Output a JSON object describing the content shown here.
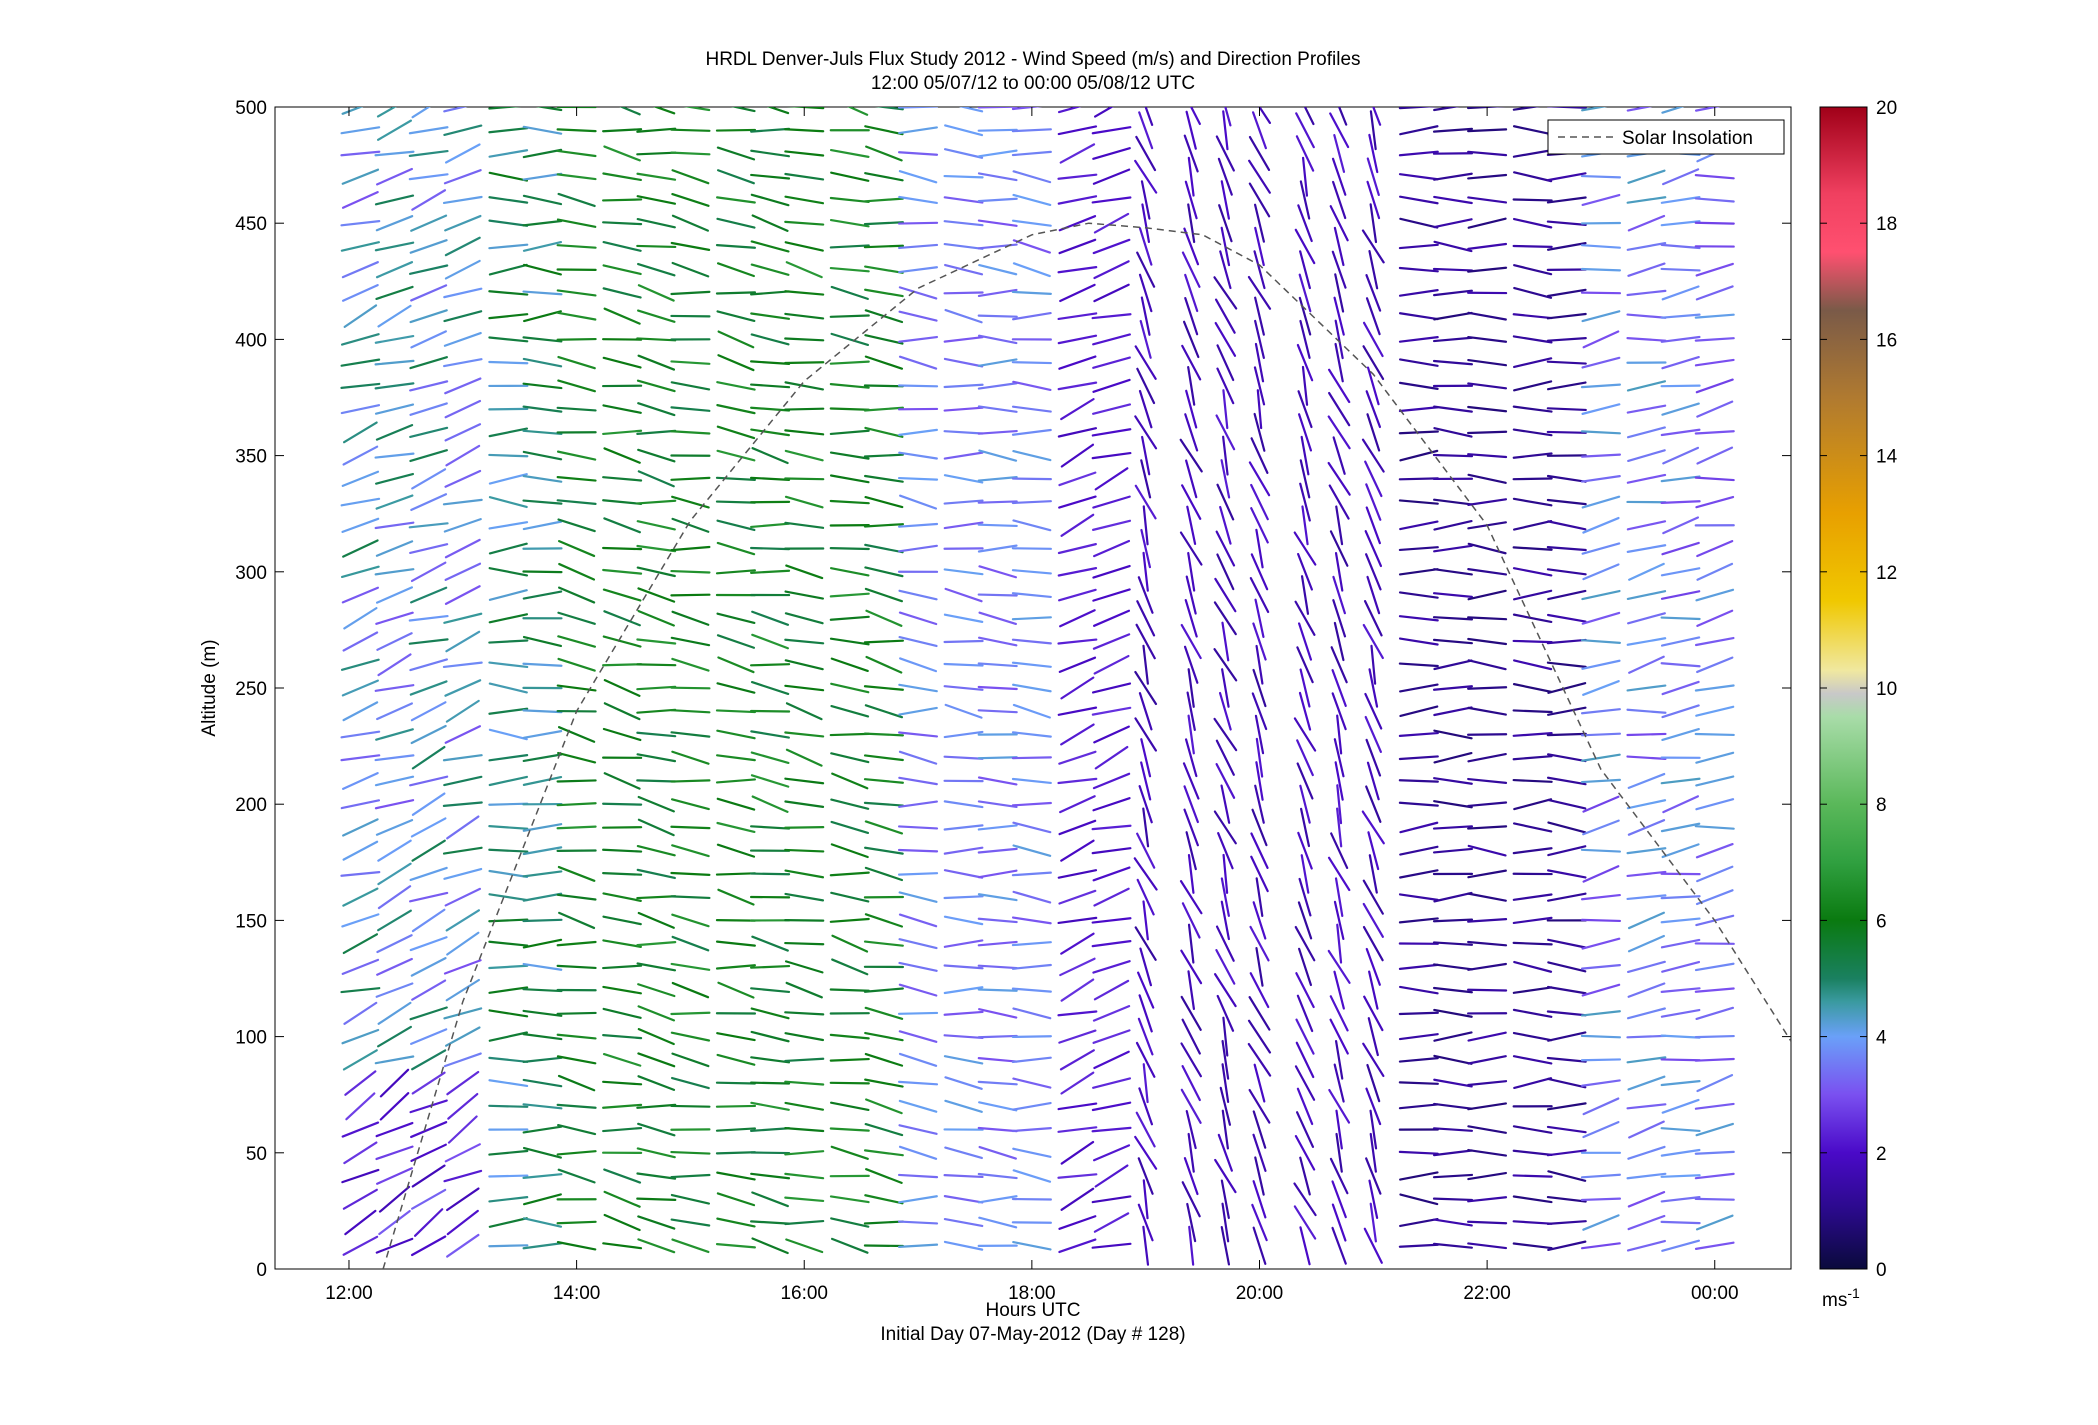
{
  "chart_data": {
    "type": "wind_barb_profile",
    "title": "HRDL Denver-Juls Flux Study 2012 - Wind Speed (m/s) and Direction Profiles",
    "subtitle": "12:00 05/07/12 to 00:00 05/08/12  UTC",
    "xlabel": "Hours UTC",
    "xlabel2": "Initial Day 07-May-2012 (Day # 128)",
    "ylabel": "Altitude (m)",
    "xlim": [
      11.35,
      24.67
    ],
    "ylim": [
      0,
      500
    ],
    "x_ticks": [
      {
        "value": 12,
        "label": "12:00"
      },
      {
        "value": 14,
        "label": "14:00"
      },
      {
        "value": 16,
        "label": "16:00"
      },
      {
        "value": 18,
        "label": "18:00"
      },
      {
        "value": 20,
        "label": "20:00"
      },
      {
        "value": 22,
        "label": "22:00"
      },
      {
        "value": 24,
        "label": "00:00"
      }
    ],
    "y_ticks": [
      0,
      50,
      100,
      150,
      200,
      250,
      300,
      350,
      400,
      450,
      500
    ],
    "legend": {
      "position": "top-right",
      "entries": [
        {
          "label": "Solar Insolation",
          "style": "dashed",
          "color": "#555555"
        }
      ]
    },
    "colorbar": {
      "min": 0,
      "max": 20,
      "ticks": [
        0,
        2,
        4,
        6,
        8,
        10,
        12,
        14,
        16,
        18,
        20
      ],
      "unit_label": "ms",
      "unit_exponent": "-1",
      "stops": [
        {
          "v": 0,
          "color": "#0a0a3c"
        },
        {
          "v": 1,
          "color": "#2a0a8a"
        },
        {
          "v": 2,
          "color": "#4a0ac8"
        },
        {
          "v": 3,
          "color": "#7a50f0"
        },
        {
          "v": 4,
          "color": "#6aa0f8"
        },
        {
          "v": 4.6,
          "color": "#3a9aa0"
        },
        {
          "v": 5,
          "color": "#1a8060"
        },
        {
          "v": 6,
          "color": "#0a7a10"
        },
        {
          "v": 7,
          "color": "#30a040"
        },
        {
          "v": 8,
          "color": "#5ab85a"
        },
        {
          "v": 9.5,
          "color": "#a8dca8"
        },
        {
          "v": 9.9,
          "color": "#c8c8c8"
        },
        {
          "v": 10.3,
          "color": "#f0e8a0"
        },
        {
          "v": 11.5,
          "color": "#f0c800"
        },
        {
          "v": 13,
          "color": "#e8a000"
        },
        {
          "v": 15,
          "color": "#b07a30"
        },
        {
          "v": 16.5,
          "color": "#7a5a48"
        },
        {
          "v": 17.5,
          "color": "#ff5070"
        },
        {
          "v": 18.5,
          "color": "#f04060"
        },
        {
          "v": 20,
          "color": "#a00018"
        }
      ]
    },
    "solar_insolation": {
      "x": [
        12.3,
        13,
        14,
        15,
        16,
        17,
        18,
        18.5,
        19.0,
        19.5,
        20,
        21,
        22,
        23,
        24,
        24.67
      ],
      "y": [
        0,
        115,
        240,
        322,
        382,
        422,
        445,
        450,
        448,
        445,
        432,
        385,
        320,
        215,
        150,
        98
      ]
    },
    "wind_profiles": {
      "altitudes": [
        10,
        20,
        30,
        40,
        50,
        60,
        70,
        80,
        90,
        100,
        110,
        120,
        130,
        140,
        150,
        160,
        170,
        180,
        190,
        200,
        210,
        220,
        230,
        240,
        250,
        260,
        270,
        280,
        290,
        300,
        310,
        320,
        330,
        340,
        350,
        360,
        370,
        380,
        390,
        400,
        410,
        420,
        430,
        440,
        450,
        460,
        470,
        480,
        490,
        500
      ],
      "times": [
        12.1,
        12.4,
        12.7,
        13.0,
        13.4,
        13.7,
        14.0,
        14.4,
        14.7,
        15.0,
        15.4,
        15.7,
        16.0,
        16.4,
        16.7,
        17.0,
        17.4,
        17.7,
        18.0,
        18.4,
        18.7,
        19.0,
        19.4,
        19.7,
        20.0,
        20.4,
        20.7,
        21.0,
        21.4,
        21.7,
        22.0,
        22.4,
        22.7,
        23.0,
        23.4,
        23.7,
        24.0
      ],
      "segments": [
        {
          "t0": 12.0,
          "t1": 13.1,
          "z0": 0,
          "z1": 500,
          "speed": 4.2,
          "dir": 70,
          "var": 1.2
        },
        {
          "t0": 12.0,
          "t1": 13.1,
          "z0": 0,
          "z1": 80,
          "speed": 2.5,
          "dir": 60,
          "var": 0.8
        },
        {
          "t0": 13.1,
          "t1": 14.0,
          "z0": 0,
          "z1": 500,
          "speed": 5.0,
          "dir": 90,
          "var": 1.0
        },
        {
          "t0": 14.0,
          "t1": 17.5,
          "z0": 0,
          "z1": 500,
          "speed": 6.0,
          "dir": 100,
          "var": 0.8
        },
        {
          "t0": 17.0,
          "t1": 18.2,
          "z0": 0,
          "z1": 500,
          "speed": 3.6,
          "dir": 95,
          "var": 0.6
        },
        {
          "t0": 18.2,
          "t1": 18.8,
          "z0": 0,
          "z1": 500,
          "speed": 2.2,
          "dir": 250,
          "var": 0.4
        },
        {
          "t0": 18.8,
          "t1": 21.2,
          "z0": 0,
          "z1": 500,
          "speed": 1.8,
          "dir": 160,
          "var": 0.5
        },
        {
          "t0": 21.2,
          "t1": 22.9,
          "z0": 0,
          "z1": 500,
          "speed": 1.2,
          "dir": 270,
          "var": 0.4
        },
        {
          "t0": 22.9,
          "t1": 24.2,
          "z0": 0,
          "z1": 500,
          "speed": 3.6,
          "dir": 260,
          "var": 0.8
        }
      ]
    }
  }
}
